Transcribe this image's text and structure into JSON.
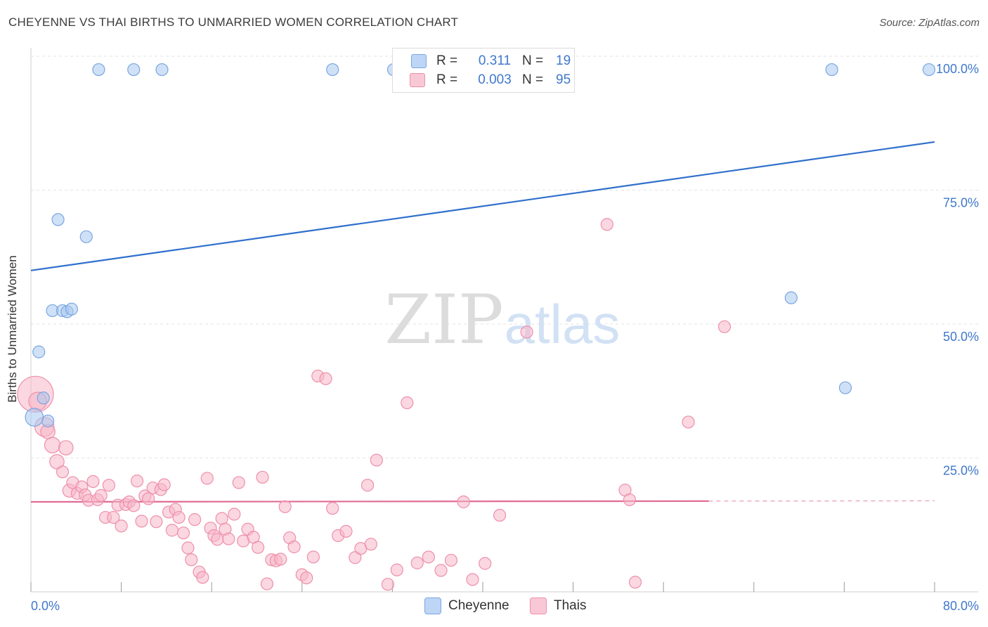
{
  "header": {
    "title": "CHEYENNE VS THAI BIRTHS TO UNMARRIED WOMEN CORRELATION CHART",
    "source": "Source: ZipAtlas.com"
  },
  "watermark": {
    "zip": "ZIP",
    "atlas": "atlas"
  },
  "legend": {
    "rows": [
      {
        "r_label": "R =",
        "r_value": "0.311",
        "n_label": "N =",
        "n_value": "19",
        "color": "#a8c8f0"
      },
      {
        "r_label": "R =",
        "r_value": "0.003",
        "n_label": "N =",
        "n_value": "95",
        "color": "#f7b6c8"
      }
    ]
  },
  "bottom_legend": {
    "series1": "Cheyenne",
    "series2": "Thais"
  },
  "colors": {
    "blue_fill": "#a8c8f0",
    "blue_stroke": "#7aa6e0",
    "blue_line": "#2f6fcc",
    "blue_text": "#3f78cc",
    "pink_fill": "#f7b6c8",
    "pink_stroke": "#ee8fab",
    "pink_line": "#e06c95"
  },
  "chart_data": {
    "type": "scatter",
    "title": "CHEYENNE VS THAI BIRTHS TO UNMARRIED WOMEN CORRELATION CHART",
    "xlabel": "",
    "ylabel": "Births to Unmarried Women",
    "xlim": [
      0,
      80
    ],
    "ylim": [
      0,
      100
    ],
    "x_tick_labels": {
      "min": "0.0%",
      "max": "80.0%"
    },
    "y_ticks": [
      {
        "value": 100,
        "label": "100.0%"
      },
      {
        "value": 75,
        "label": "75.0%"
      },
      {
        "value": 50,
        "label": "50.0%"
      },
      {
        "value": 25,
        "label": "25.0%"
      }
    ],
    "series": [
      {
        "name": "Cheyenne",
        "R": 0.311,
        "N": 19,
        "trend": {
          "x0": 0,
          "y0": 60.0,
          "x1": 80,
          "y1": 84.0,
          "dashed_from": null
        },
        "points": [
          {
            "x": 6.0,
            "y": 97.5,
            "s": 1
          },
          {
            "x": 9.1,
            "y": 97.5,
            "s": 1
          },
          {
            "x": 11.6,
            "y": 97.5,
            "s": 1
          },
          {
            "x": 26.7,
            "y": 97.5,
            "s": 1
          },
          {
            "x": 32.1,
            "y": 97.5,
            "s": 1
          },
          {
            "x": 70.9,
            "y": 97.5,
            "s": 1
          },
          {
            "x": 79.5,
            "y": 97.5,
            "s": 1
          },
          {
            "x": 2.4,
            "y": 69.5,
            "s": 1
          },
          {
            "x": 4.9,
            "y": 66.3,
            "s": 1
          },
          {
            "x": 1.9,
            "y": 52.5,
            "s": 1
          },
          {
            "x": 2.8,
            "y": 52.5,
            "s": 1
          },
          {
            "x": 3.2,
            "y": 52.3,
            "s": 1
          },
          {
            "x": 3.6,
            "y": 52.8,
            "s": 1
          },
          {
            "x": 0.7,
            "y": 44.8,
            "s": 1
          },
          {
            "x": 1.1,
            "y": 36.2,
            "s": 1
          },
          {
            "x": 1.5,
            "y": 31.9,
            "s": 1
          },
          {
            "x": 0.3,
            "y": 32.6,
            "s": 1.5
          },
          {
            "x": 67.3,
            "y": 54.9,
            "s": 1
          },
          {
            "x": 72.1,
            "y": 38.1,
            "s": 1
          }
        ]
      },
      {
        "name": "Thais",
        "R": 0.003,
        "N": 95,
        "trend": {
          "x0": 0,
          "y0": 16.8,
          "x1": 80,
          "y1": 17.0,
          "dashed_from": 60
        },
        "points": [
          {
            "x": 0.4,
            "y": 36.9,
            "s": 3
          },
          {
            "x": 0.6,
            "y": 35.6,
            "s": 1.5
          },
          {
            "x": 1.2,
            "y": 30.8,
            "s": 1.6
          },
          {
            "x": 1.5,
            "y": 29.9,
            "s": 1.2
          },
          {
            "x": 1.9,
            "y": 27.4,
            "s": 1.3
          },
          {
            "x": 2.3,
            "y": 24.3,
            "s": 1.2
          },
          {
            "x": 2.8,
            "y": 22.4,
            "s": 1
          },
          {
            "x": 3.1,
            "y": 26.9,
            "s": 1.2
          },
          {
            "x": 3.4,
            "y": 18.9,
            "s": 1.1
          },
          {
            "x": 3.7,
            "y": 20.4,
            "s": 1
          },
          {
            "x": 4.1,
            "y": 18.4,
            "s": 1
          },
          {
            "x": 4.5,
            "y": 19.6,
            "s": 1
          },
          {
            "x": 4.8,
            "y": 18.1,
            "s": 1
          },
          {
            "x": 5.1,
            "y": 17.1,
            "s": 1
          },
          {
            "x": 5.5,
            "y": 20.6,
            "s": 1
          },
          {
            "x": 5.9,
            "y": 17.2,
            "s": 1
          },
          {
            "x": 6.2,
            "y": 18.0,
            "s": 1
          },
          {
            "x": 6.6,
            "y": 13.9,
            "s": 1
          },
          {
            "x": 6.9,
            "y": 19.9,
            "s": 1
          },
          {
            "x": 7.3,
            "y": 13.9,
            "s": 1
          },
          {
            "x": 7.7,
            "y": 16.2,
            "s": 1
          },
          {
            "x": 8.0,
            "y": 12.3,
            "s": 1
          },
          {
            "x": 8.4,
            "y": 16.3,
            "s": 1
          },
          {
            "x": 8.7,
            "y": 16.8,
            "s": 1
          },
          {
            "x": 9.1,
            "y": 16.1,
            "s": 1
          },
          {
            "x": 9.4,
            "y": 20.7,
            "s": 1
          },
          {
            "x": 9.8,
            "y": 13.2,
            "s": 1
          },
          {
            "x": 10.1,
            "y": 17.9,
            "s": 1
          },
          {
            "x": 10.4,
            "y": 17.4,
            "s": 1
          },
          {
            "x": 10.8,
            "y": 19.4,
            "s": 1
          },
          {
            "x": 11.1,
            "y": 13.1,
            "s": 1
          },
          {
            "x": 11.5,
            "y": 19.1,
            "s": 1
          },
          {
            "x": 11.8,
            "y": 20.0,
            "s": 1
          },
          {
            "x": 12.2,
            "y": 14.9,
            "s": 1
          },
          {
            "x": 12.5,
            "y": 11.5,
            "s": 1
          },
          {
            "x": 12.8,
            "y": 15.4,
            "s": 1
          },
          {
            "x": 13.1,
            "y": 13.9,
            "s": 1
          },
          {
            "x": 13.5,
            "y": 11.0,
            "s": 1
          },
          {
            "x": 13.9,
            "y": 8.2,
            "s": 1
          },
          {
            "x": 14.2,
            "y": 6.0,
            "s": 1
          },
          {
            "x": 14.5,
            "y": 13.5,
            "s": 1
          },
          {
            "x": 14.9,
            "y": 3.7,
            "s": 1
          },
          {
            "x": 15.2,
            "y": 2.7,
            "s": 1
          },
          {
            "x": 15.6,
            "y": 21.2,
            "s": 1
          },
          {
            "x": 15.9,
            "y": 11.9,
            "s": 1
          },
          {
            "x": 16.2,
            "y": 10.5,
            "s": 1
          },
          {
            "x": 16.5,
            "y": 9.8,
            "s": 1
          },
          {
            "x": 16.9,
            "y": 13.7,
            "s": 1
          },
          {
            "x": 17.2,
            "y": 11.7,
            "s": 1
          },
          {
            "x": 17.5,
            "y": 9.9,
            "s": 1
          },
          {
            "x": 18.0,
            "y": 14.5,
            "s": 1
          },
          {
            "x": 18.4,
            "y": 20.4,
            "s": 1
          },
          {
            "x": 18.8,
            "y": 9.5,
            "s": 1
          },
          {
            "x": 19.2,
            "y": 11.7,
            "s": 1
          },
          {
            "x": 19.7,
            "y": 10.2,
            "s": 1
          },
          {
            "x": 20.1,
            "y": 8.3,
            "s": 1
          },
          {
            "x": 20.5,
            "y": 21.4,
            "s": 1
          },
          {
            "x": 20.9,
            "y": 1.5,
            "s": 1
          },
          {
            "x": 21.3,
            "y": 6.0,
            "s": 1
          },
          {
            "x": 21.7,
            "y": 5.8,
            "s": 1
          },
          {
            "x": 22.1,
            "y": 6.1,
            "s": 1
          },
          {
            "x": 22.5,
            "y": 15.9,
            "s": 1
          },
          {
            "x": 22.9,
            "y": 10.1,
            "s": 1
          },
          {
            "x": 23.3,
            "y": 8.4,
            "s": 1
          },
          {
            "x": 24.0,
            "y": 3.2,
            "s": 1
          },
          {
            "x": 24.4,
            "y": 2.6,
            "s": 1
          },
          {
            "x": 25.0,
            "y": 6.5,
            "s": 1
          },
          {
            "x": 25.4,
            "y": 40.3,
            "s": 1
          },
          {
            "x": 26.1,
            "y": 39.8,
            "s": 1
          },
          {
            "x": 26.7,
            "y": 15.6,
            "s": 1
          },
          {
            "x": 27.2,
            "y": 10.5,
            "s": 1
          },
          {
            "x": 27.9,
            "y": 11.3,
            "s": 1
          },
          {
            "x": 28.7,
            "y": 6.4,
            "s": 1
          },
          {
            "x": 29.2,
            "y": 8.1,
            "s": 1
          },
          {
            "x": 29.8,
            "y": 19.9,
            "s": 1
          },
          {
            "x": 30.1,
            "y": 8.9,
            "s": 1
          },
          {
            "x": 30.6,
            "y": 24.6,
            "s": 1
          },
          {
            "x": 31.6,
            "y": 1.4,
            "s": 1
          },
          {
            "x": 32.4,
            "y": 4.1,
            "s": 1
          },
          {
            "x": 33.3,
            "y": 35.3,
            "s": 1
          },
          {
            "x": 34.2,
            "y": 5.4,
            "s": 1
          },
          {
            "x": 35.2,
            "y": 6.5,
            "s": 1
          },
          {
            "x": 36.3,
            "y": 4.0,
            "s": 1
          },
          {
            "x": 37.2,
            "y": 5.9,
            "s": 1
          },
          {
            "x": 38.3,
            "y": 16.8,
            "s": 1
          },
          {
            "x": 39.1,
            "y": 2.3,
            "s": 1
          },
          {
            "x": 40.2,
            "y": 5.3,
            "s": 1
          },
          {
            "x": 41.5,
            "y": 14.3,
            "s": 1
          },
          {
            "x": 43.9,
            "y": 48.5,
            "s": 1
          },
          {
            "x": 51.0,
            "y": 68.6,
            "s": 1
          },
          {
            "x": 52.6,
            "y": 19.0,
            "s": 1
          },
          {
            "x": 53.0,
            "y": 17.2,
            "s": 1
          },
          {
            "x": 53.5,
            "y": 1.8,
            "s": 1
          },
          {
            "x": 58.2,
            "y": 31.7,
            "s": 1
          },
          {
            "x": 61.4,
            "y": 49.5,
            "s": 1
          }
        ]
      }
    ]
  }
}
